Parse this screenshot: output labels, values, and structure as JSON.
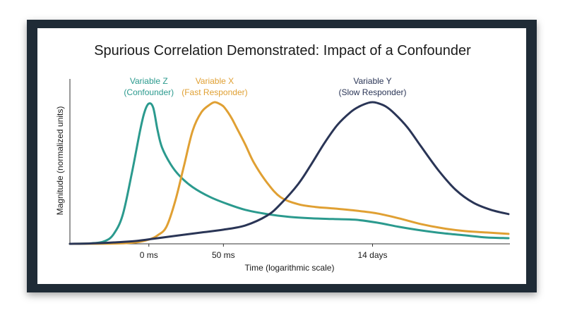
{
  "chart_data": {
    "type": "line",
    "title": "Spurious Correlation Demonstrated: Impact of a Confounder",
    "xlabel": "Time (logarithmic scale)",
    "ylabel": "Magnitude (normalized units)",
    "x_ticks": [
      {
        "label": "0 ms",
        "x": 0.18
      },
      {
        "label": "50 ms",
        "x": 0.35
      },
      {
        "label": "14 days",
        "x": 0.69
      }
    ],
    "xlim": [
      0,
      1
    ],
    "ylim": [
      0,
      1
    ],
    "grid": false,
    "legend": "none",
    "series": [
      {
        "name": "Variable Z",
        "subtitle": "(Confounder)",
        "color": "#2b9a8e",
        "x": [
          0.0,
          0.05,
          0.08,
          0.1,
          0.12,
          0.14,
          0.16,
          0.17,
          0.18,
          0.19,
          0.2,
          0.21,
          0.23,
          0.25,
          0.28,
          0.32,
          0.36,
          0.4,
          0.45,
          0.5,
          0.55,
          0.6,
          0.65,
          0.7,
          0.75,
          0.8,
          0.85,
          0.9,
          0.95,
          1.0
        ],
        "y": [
          0.0,
          0.004,
          0.02,
          0.07,
          0.2,
          0.48,
          0.8,
          0.93,
          0.99,
          0.96,
          0.8,
          0.68,
          0.56,
          0.48,
          0.4,
          0.33,
          0.28,
          0.24,
          0.21,
          0.19,
          0.18,
          0.175,
          0.17,
          0.15,
          0.12,
          0.095,
          0.075,
          0.06,
          0.045,
          0.04
        ]
      },
      {
        "name": "Variable X",
        "subtitle": "(Fast Responder)",
        "color": "#e0a033",
        "x": [
          0.0,
          0.1,
          0.15,
          0.18,
          0.2,
          0.22,
          0.24,
          0.26,
          0.28,
          0.3,
          0.32,
          0.33,
          0.34,
          0.35,
          0.36,
          0.37,
          0.38,
          0.4,
          0.42,
          0.45,
          0.48,
          0.52,
          0.56,
          0.6,
          0.65,
          0.7,
          0.75,
          0.8,
          0.85,
          0.9,
          0.95,
          1.0
        ],
        "y": [
          0.0,
          0.002,
          0.01,
          0.03,
          0.06,
          0.12,
          0.3,
          0.55,
          0.8,
          0.93,
          0.985,
          1.0,
          0.99,
          0.97,
          0.93,
          0.88,
          0.82,
          0.7,
          0.57,
          0.43,
          0.33,
          0.28,
          0.26,
          0.25,
          0.235,
          0.215,
          0.18,
          0.14,
          0.11,
          0.09,
          0.08,
          0.07
        ]
      },
      {
        "name": "Variable Y",
        "subtitle": "(Slow Responder)",
        "color": "#2a3556",
        "x": [
          0.0,
          0.05,
          0.1,
          0.15,
          0.2,
          0.25,
          0.3,
          0.35,
          0.4,
          0.45,
          0.48,
          0.52,
          0.55,
          0.58,
          0.61,
          0.64,
          0.66,
          0.68,
          0.69,
          0.7,
          0.72,
          0.74,
          0.77,
          0.8,
          0.84,
          0.88,
          0.92,
          0.96,
          1.0
        ],
        "y": [
          0.0,
          0.003,
          0.01,
          0.02,
          0.04,
          0.06,
          0.08,
          0.1,
          0.13,
          0.2,
          0.28,
          0.42,
          0.56,
          0.71,
          0.84,
          0.93,
          0.97,
          0.995,
          1.0,
          0.995,
          0.97,
          0.92,
          0.82,
          0.69,
          0.52,
          0.38,
          0.29,
          0.24,
          0.21
        ]
      }
    ]
  }
}
